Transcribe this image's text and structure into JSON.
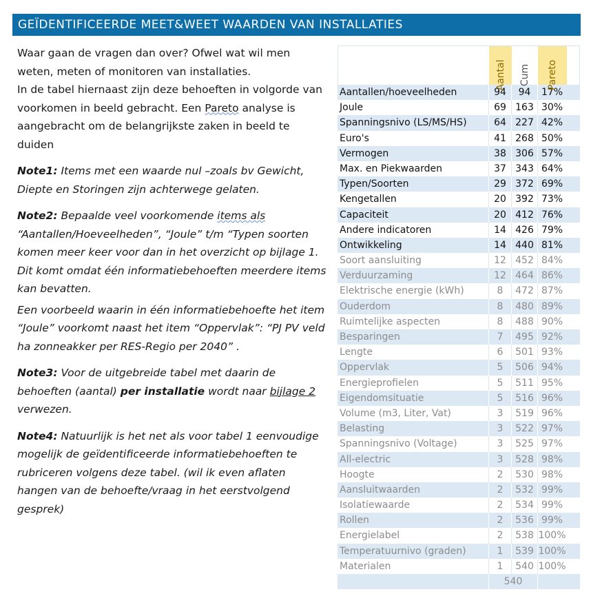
{
  "header": {
    "title": "GEÏDENTIFICEERDE MEET&WEET WAARDEN VAN INSTALLATIES"
  },
  "intro": {
    "line1": "Waar gaan de vragen dan over? Ofwel wat wil men weten, meten of monitoren van installaties.",
    "line2_a": "In de tabel hiernaast zijn deze behoeften in volgorde van voorkomen in beeld gebracht. Een ",
    "line2_pareto": "Pareto",
    "line2_b": " analyse is aangebracht om de belangrijkste zaken in beeld te duiden"
  },
  "notes": {
    "note1_label": "Note1:",
    "note1_text": " Items met een waarde nul –zoals bv Gewicht, Diepte en Storingen zijn achterwege gelaten.",
    "note2_label": "Note2:",
    "note2_a": " Bepaalde veel voorkomende ",
    "note2_items": "items  als",
    "note2_b": " “Aantallen/Hoeveelheden”,  “Joule” t/m “Typen soorten komen meer keer voor dan in het overzicht op bijlage 1. Dit komt omdat één informatiebehoeften meerdere items kan bevatten.",
    "note2_c": "Een voorbeeld waarin in één informatiebehoefte het item “Joule” voorkomt naast het item “Oppervlak”: “PJ PV veld ha zonneakker per RES-Regio per 2040” .",
    "note3_label": "Note3:",
    "note3_a": " Voor de uitgebreide tabel met daarin de behoeften (aantal) ",
    "note3_bold": "per installatie",
    "note3_b": " wordt naar ",
    "note3_link": "bijlage 2",
    "note3_c": " verwezen.",
    "note4_label": "Note4:",
    "note4_text": " Natuurlijk is het net als voor tabel 1 eenvoudige mogelijk de geïdentificeerde informatiebehoeften te rubriceren volgens deze tabel. (wil ik even aflaten hangen van de behoefte/vraag in het eerstvolgend gesprek)"
  },
  "table": {
    "headers": [
      "Aantal",
      "Cum",
      "Pareto"
    ],
    "rows": [
      [
        "Aantallen/hoeveelheden",
        "94",
        "94",
        "17%"
      ],
      [
        "Joule",
        "69",
        "163",
        "30%"
      ],
      [
        "Spanningsnivo (LS/MS/HS)",
        "64",
        "227",
        "42%"
      ],
      [
        "Euro's",
        "41",
        "268",
        "50%"
      ],
      [
        "Vermogen",
        "38",
        "306",
        "57%"
      ],
      [
        "Max. en Piekwaarden",
        "37",
        "343",
        "64%"
      ],
      [
        "Typen/Soorten",
        "29",
        "372",
        "69%"
      ],
      [
        "Kengetallen",
        "20",
        "392",
        "73%"
      ],
      [
        "Capaciteit",
        "20",
        "412",
        "76%"
      ],
      [
        "Andere indicatoren",
        "14",
        "426",
        "79%"
      ],
      [
        "Ontwikkeling",
        "14",
        "440",
        "81%"
      ],
      [
        "Soort aansluiting",
        "12",
        "452",
        "84%"
      ],
      [
        "Verduurzaming",
        "12",
        "464",
        "86%"
      ],
      [
        "Elektrische energie (kWh)",
        "8",
        "472",
        "87%"
      ],
      [
        "Ouderdom",
        "8",
        "480",
        "89%"
      ],
      [
        "Ruimtelijke aspecten",
        "8",
        "488",
        "90%"
      ],
      [
        "Besparingen",
        "7",
        "495",
        "92%"
      ],
      [
        "Lengte",
        "6",
        "501",
        "93%"
      ],
      [
        "Oppervlak",
        "5",
        "506",
        "94%"
      ],
      [
        "Energieprofielen",
        "5",
        "511",
        "95%"
      ],
      [
        "Eigendomsituatie",
        "5",
        "516",
        "96%"
      ],
      [
        "Volume (m3, Liter, Vat)",
        "3",
        "519",
        "96%"
      ],
      [
        "Belasting",
        "3",
        "522",
        "97%"
      ],
      [
        "Spanningsnivo (Voltage)",
        "3",
        "525",
        "97%"
      ],
      [
        "All-electric",
        "3",
        "528",
        "98%"
      ],
      [
        "Hoogte",
        "2",
        "530",
        "98%"
      ],
      [
        "Aansluitwaarden",
        "2",
        "532",
        "99%"
      ],
      [
        "Isolatiewaarde",
        "2",
        "534",
        "99%"
      ],
      [
        "Rollen",
        "2",
        "536",
        "99%"
      ],
      [
        "Energielabel",
        "2",
        "538",
        "100%"
      ],
      [
        "Temperatuurnivo (graden)",
        "1",
        "539",
        "100%"
      ],
      [
        "Materialen",
        "1",
        "540",
        "100%"
      ]
    ],
    "total": "540",
    "highlight_count": 11,
    "colors": {
      "header_bg": "#0e6ea8",
      "shade": "#dce8f4",
      "header_col": "#fbe79a"
    }
  }
}
